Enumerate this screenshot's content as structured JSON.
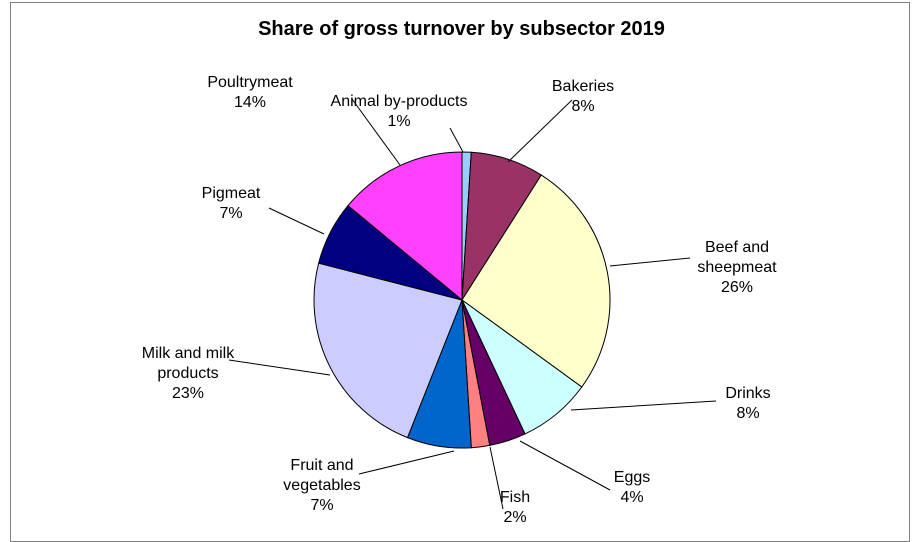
{
  "chart_data": {
    "type": "pie",
    "title": "Share of gross turnover by subsector 2019",
    "slices": [
      {
        "label": [
          "Animal by-products"
        ],
        "pct": "1%",
        "value": 1,
        "color": "#99ccff"
      },
      {
        "label": [
          "Bakeries"
        ],
        "pct": "8%",
        "value": 8,
        "color": "#993366"
      },
      {
        "label": [
          "Beef and",
          "sheepmeat"
        ],
        "pct": "26%",
        "value": 26,
        "color": "#ffffcc"
      },
      {
        "label": [
          "Drinks"
        ],
        "pct": "8%",
        "value": 8,
        "color": "#ccffff"
      },
      {
        "label": [
          "Eggs"
        ],
        "pct": "4%",
        "value": 4,
        "color": "#660066"
      },
      {
        "label": [
          "Fish"
        ],
        "pct": "2%",
        "value": 2,
        "color": "#ff8080"
      },
      {
        "label": [
          "Fruit and",
          "vegetables"
        ],
        "pct": "7%",
        "value": 7,
        "color": "#0066cc"
      },
      {
        "label": [
          "Milk and milk",
          "products"
        ],
        "pct": "23%",
        "value": 23,
        "color": "#ccccff"
      },
      {
        "label": [
          "Pigmeat"
        ],
        "pct": "7%",
        "value": 7,
        "color": "#000080"
      },
      {
        "label": [
          "Poultrymeat"
        ],
        "pct": "14%",
        "value": 14,
        "color": "#ff40ff"
      }
    ]
  }
}
